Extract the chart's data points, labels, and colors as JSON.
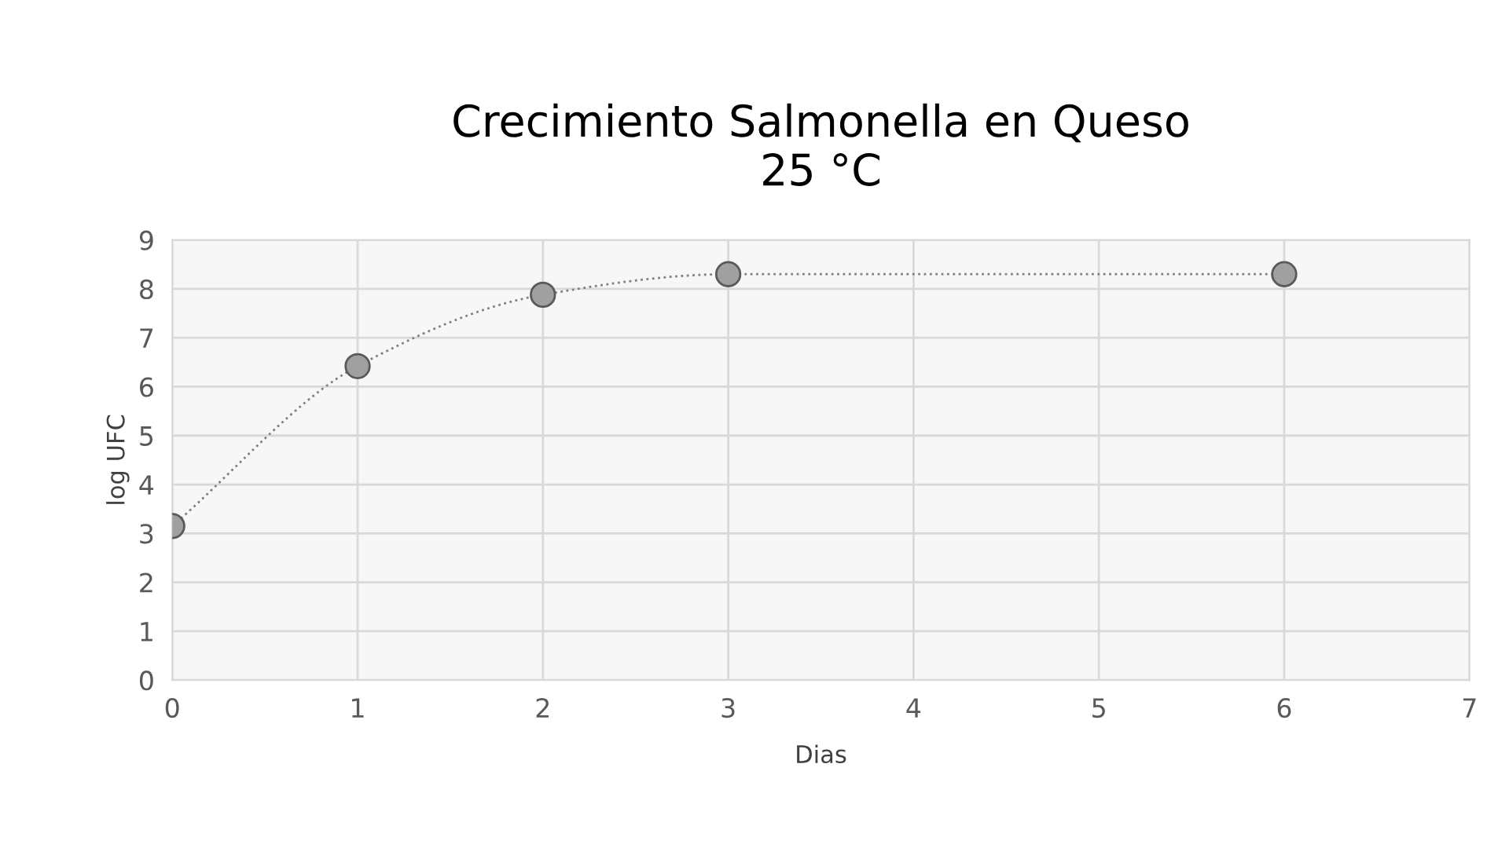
{
  "chart_data": {
    "type": "line",
    "title": "Crecimiento Salmonella en Queso\n25 °C",
    "xlabel": "Dias",
    "ylabel": "log UFC",
    "x": [
      0,
      1,
      2,
      3,
      6
    ],
    "series": [
      {
        "color": "#a0a0a0",
        "values": [
          3.15,
          6.42,
          7.88,
          8.3,
          8.3
        ]
      }
    ],
    "xlim": [
      0,
      7
    ],
    "xticks": [
      0,
      1,
      2,
      3,
      4,
      5,
      6,
      7
    ],
    "ylim": [
      0,
      9
    ],
    "yticks": [
      0,
      1,
      2,
      3,
      4,
      5,
      6,
      7,
      8,
      9
    ],
    "grid": true,
    "marker": "circle",
    "line_style": "dotted",
    "legend": false
  }
}
